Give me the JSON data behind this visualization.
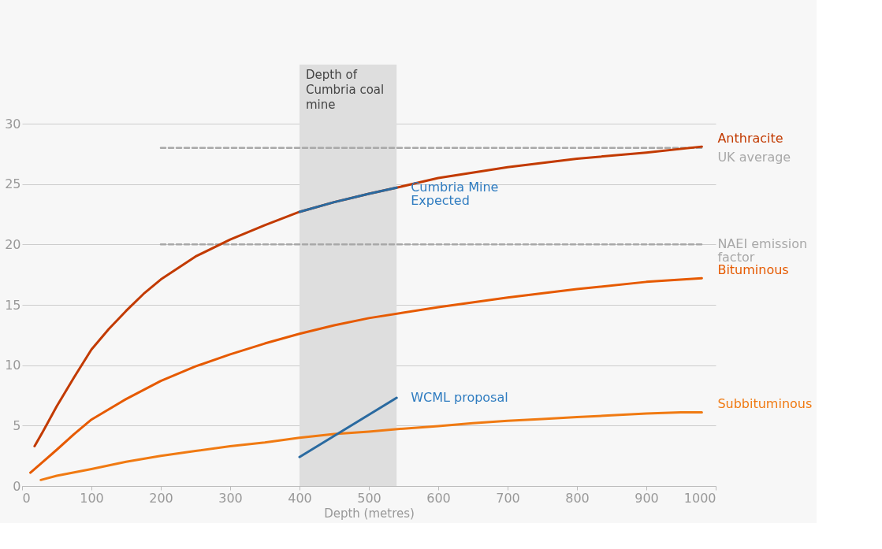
{
  "chart_data": {
    "type": "line",
    "xlabel": "Depth (metres)",
    "xlim": [
      0,
      1000
    ],
    "ylim": [
      0,
      30
    ],
    "xticks": [
      0,
      100,
      200,
      300,
      400,
      500,
      600,
      700,
      800,
      900,
      1000
    ],
    "yticks": [
      0,
      5,
      10,
      15,
      20,
      25,
      30
    ],
    "grid": "y",
    "line_style": "solid",
    "bands": [
      {
        "axis": "x",
        "from": 400,
        "to": 540,
        "label": "Depth of Cumbria coal mine",
        "color": "#dedede"
      }
    ],
    "series": [
      {
        "name": "UK average",
        "color": "#a8a8a8",
        "line_style": "dashed",
        "x": [
          200,
          980
        ],
        "values": [
          28,
          28
        ]
      },
      {
        "name": "NAEI emission factor",
        "color": "#a8a8a8",
        "line_style": "dashed",
        "x": [
          200,
          980
        ],
        "values": [
          20,
          20
        ]
      },
      {
        "name": "Anthracite",
        "color": "#c23a00",
        "x": [
          18,
          30,
          50,
          75,
          100,
          125,
          150,
          175,
          200,
          250,
          300,
          350,
          400,
          450,
          500,
          540,
          600,
          700,
          800,
          900,
          980
        ],
        "values": [
          3.3,
          4.5,
          6.6,
          9.0,
          11.3,
          13.0,
          14.5,
          15.9,
          17.1,
          19.0,
          20.4,
          21.6,
          22.7,
          23.5,
          24.2,
          24.7,
          25.5,
          26.4,
          27.1,
          27.6,
          28.1
        ]
      },
      {
        "name": "Bituminous",
        "color": "#e65a00",
        "x": [
          12,
          30,
          50,
          75,
          100,
          150,
          200,
          250,
          300,
          350,
          400,
          450,
          500,
          600,
          700,
          800,
          900,
          980
        ],
        "values": [
          1.1,
          2.0,
          3.0,
          4.3,
          5.5,
          7.2,
          8.7,
          9.9,
          10.9,
          11.8,
          12.6,
          13.3,
          13.9,
          14.8,
          15.6,
          16.3,
          16.9,
          17.2
        ]
      },
      {
        "name": "Subbituminous",
        "color": "#f07a12",
        "x": [
          27,
          50,
          100,
          150,
          200,
          250,
          300,
          350,
          400,
          450,
          500,
          550,
          600,
          650,
          700,
          750,
          800,
          850,
          900,
          950,
          980
        ],
        "values": [
          0.5,
          0.85,
          1.4,
          2.0,
          2.5,
          2.9,
          3.3,
          3.6,
          4.0,
          4.3,
          4.5,
          4.75,
          4.95,
          5.2,
          5.4,
          5.55,
          5.7,
          5.85,
          6.0,
          6.1,
          6.1
        ]
      },
      {
        "name": "Cumbria Mine Expected",
        "color": "#2a6aa0",
        "x": [
          400,
          450,
          500,
          540
        ],
        "values": [
          22.7,
          23.5,
          24.2,
          24.7
        ]
      },
      {
        "name": "WCML proposal",
        "color": "#2a6aa0",
        "x": [
          400,
          540
        ],
        "values": [
          2.4,
          7.3
        ]
      }
    ]
  }
}
